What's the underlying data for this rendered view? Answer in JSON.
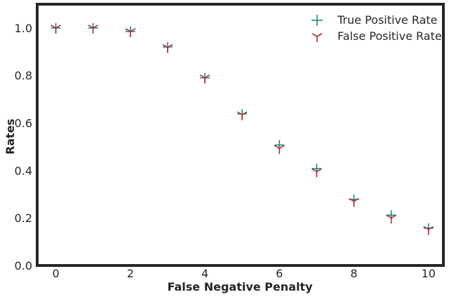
{
  "chart_data": {
    "type": "scatter",
    "title": "",
    "xlabel": "False Negative Penalty",
    "ylabel": "Rates",
    "xlim": [
      -0.5,
      10.4
    ],
    "ylim": [
      0,
      1.1
    ],
    "x_ticks": [
      0,
      2,
      4,
      6,
      8,
      10
    ],
    "x_tick_labels": [
      "0",
      "2",
      "4",
      "6",
      "8",
      "10"
    ],
    "y_ticks": [
      0.0,
      0.2,
      0.4,
      0.6,
      0.8,
      1.0
    ],
    "y_tick_labels": [
      "0.0",
      "0.2",
      "0.4",
      "0.6",
      "0.8",
      "1.0"
    ],
    "grid": false,
    "legend_position": "top-right",
    "x": [
      0,
      1,
      2,
      3,
      4,
      5,
      6,
      7,
      8,
      9,
      10
    ],
    "series": [
      {
        "name": "True Positive Rate",
        "marker": "plus",
        "color": "#1f8a7a",
        "values": [
          1.0,
          1.0,
          0.985,
          0.92,
          0.79,
          0.638,
          0.507,
          0.408,
          0.278,
          0.212,
          0.157
        ]
      },
      {
        "name": "False Positive Rate",
        "marker": "tri-down",
        "color": "#b0283a",
        "values": [
          1.0,
          1.0,
          0.985,
          0.918,
          0.79,
          0.635,
          0.493,
          0.395,
          0.27,
          0.2,
          0.152
        ]
      }
    ]
  }
}
